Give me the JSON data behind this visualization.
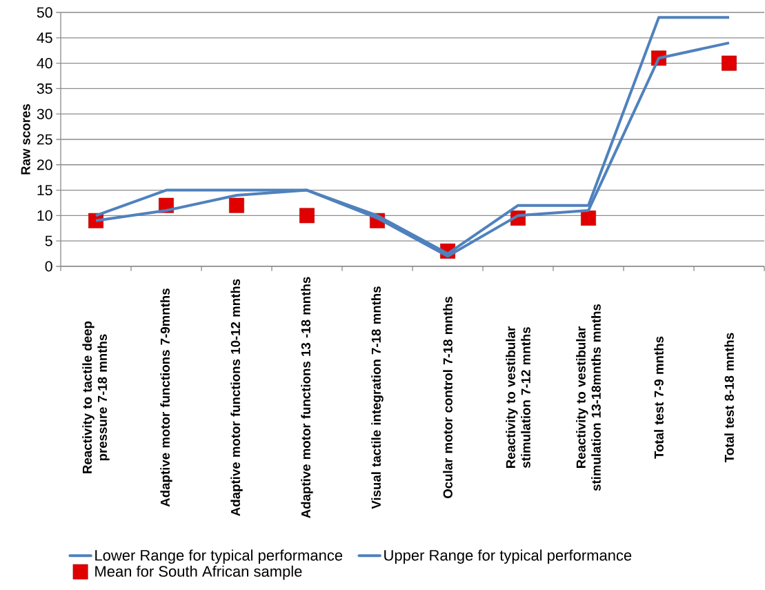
{
  "chart_data": {
    "type": "line",
    "ylabel": "Raw scores",
    "categories": [
      "Reactivity to tactile deep pressure 7-18 mnths",
      "Adaptive motor functions 7-9mnths",
      "Adaptive motor functions 10-12 mnths",
      "Adaptive motor functions 13 -18 mnths",
      "Visual tactile integration 7-18 mnths",
      "Ocular motor control 7-18 mnths",
      "Reactivity to vestibular stimulation 7-12 mnths",
      "Reactivity to vestibular stimulation 13-18mnths mnths",
      "Total test 7-9 mnths",
      "Total test 8-18 mnths"
    ],
    "series": [
      {
        "name": "Lower Range for typical performance",
        "type": "line",
        "color": "#4f81bd",
        "values": [
          9,
          11,
          14,
          15,
          9.5,
          2,
          10,
          11,
          41,
          44
        ]
      },
      {
        "name": "Upper Range for typical performance",
        "type": "line",
        "color": "#4f81bd",
        "values": [
          10,
          15,
          15,
          15,
          10,
          2.5,
          12,
          12,
          49,
          49
        ]
      },
      {
        "name": "Mean for South African sample",
        "type": "scatter",
        "marker": "square",
        "color": "#e00000",
        "values": [
          9,
          12,
          12,
          10,
          9,
          3,
          9.5,
          9.5,
          41,
          40
        ]
      }
    ],
    "ylim": [
      0,
      50
    ],
    "yticks": [
      0,
      5,
      10,
      15,
      20,
      25,
      30,
      35,
      40,
      45,
      50
    ],
    "grid": "y",
    "legend": "bottom"
  }
}
